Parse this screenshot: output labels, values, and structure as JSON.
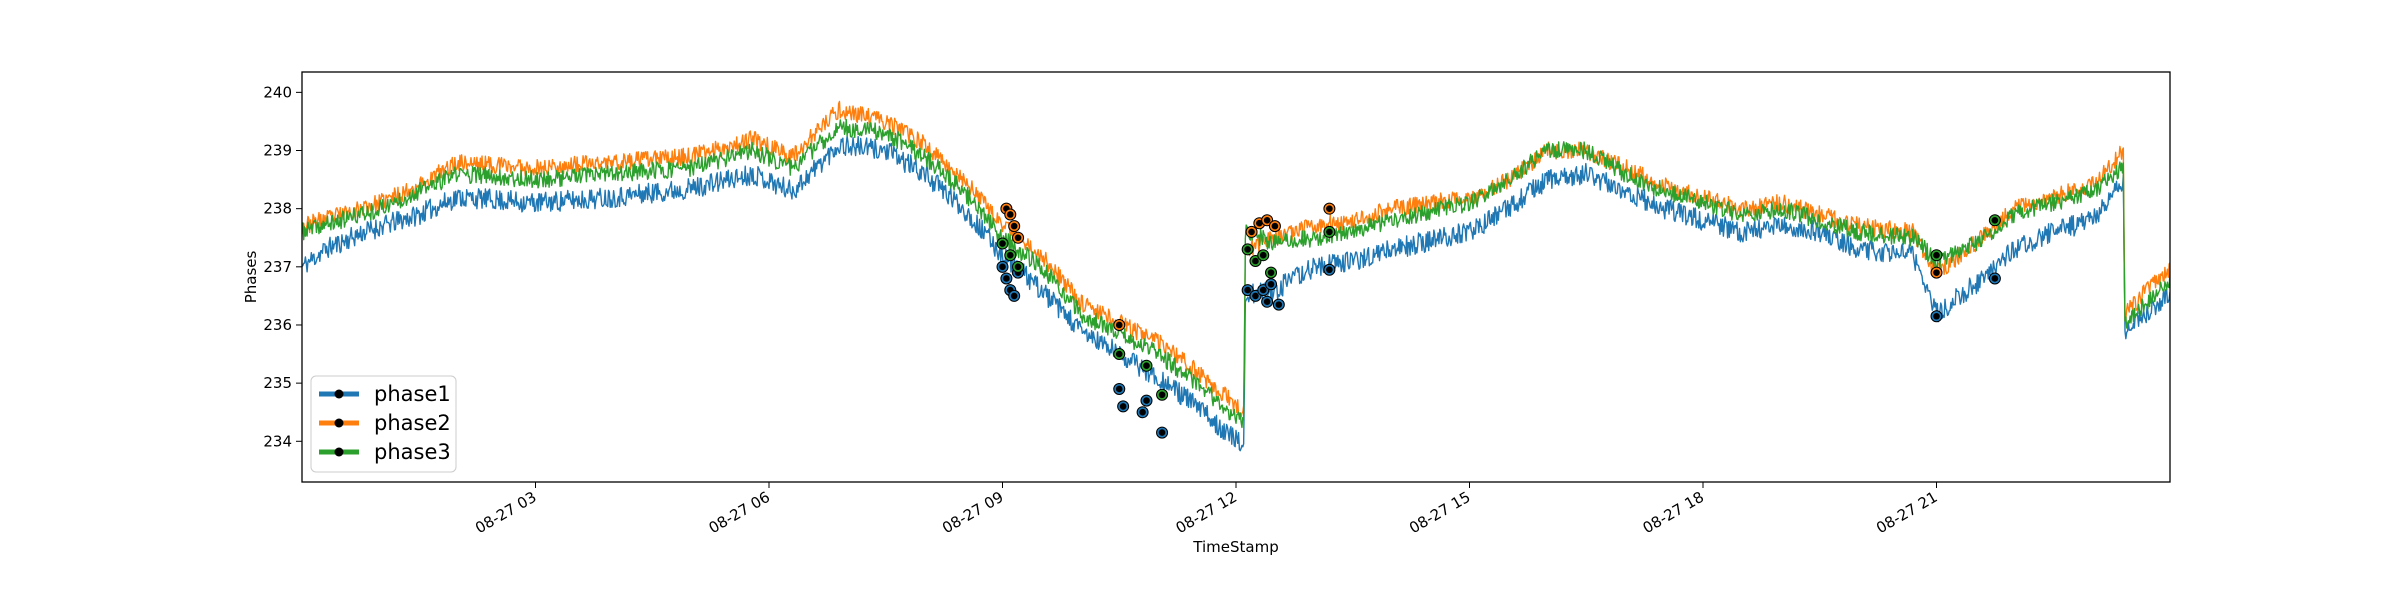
{
  "chart_data": {
    "type": "line",
    "title": "",
    "xlabel": "TimeStamp",
    "ylabel": "Phases",
    "x_range": [
      "08-27 00:00",
      "08-27 24:00"
    ],
    "ylim": [
      233.3,
      240.35
    ],
    "grid": false,
    "legend_position": "lower-left",
    "x_ticks": [
      {
        "t": 3,
        "label": "08-27 03"
      },
      {
        "t": 6,
        "label": "08-27 06"
      },
      {
        "t": 9,
        "label": "08-27 09"
      },
      {
        "t": 12,
        "label": "08-27 12"
      },
      {
        "t": 15,
        "label": "08-27 15"
      },
      {
        "t": 18,
        "label": "08-27 18"
      },
      {
        "t": 21,
        "label": "08-27 21"
      }
    ],
    "y_ticks": [
      {
        "v": 234,
        "label": "234"
      },
      {
        "v": 235,
        "label": "235"
      },
      {
        "v": 236,
        "label": "236"
      },
      {
        "v": 237,
        "label": "237"
      },
      {
        "v": 238,
        "label": "238"
      },
      {
        "v": 239,
        "label": "239"
      },
      {
        "v": 240,
        "label": "240"
      }
    ],
    "series": [
      {
        "name": "phase1",
        "color": "#1f77b4",
        "noise": 0.18,
        "seed": 11,
        "points": [
          [
            0.0,
            237.0
          ],
          [
            0.3,
            237.3
          ],
          [
            0.8,
            237.6
          ],
          [
            1.5,
            237.9
          ],
          [
            2.0,
            238.2
          ],
          [
            3.0,
            238.1
          ],
          [
            4.0,
            238.2
          ],
          [
            5.0,
            238.35
          ],
          [
            5.8,
            238.6
          ],
          [
            6.3,
            238.3
          ],
          [
            6.9,
            239.1
          ],
          [
            7.5,
            239.0
          ],
          [
            8.0,
            238.6
          ],
          [
            8.5,
            238.0
          ],
          [
            9.0,
            237.2
          ],
          [
            9.5,
            236.6
          ],
          [
            10.0,
            235.9
          ],
          [
            11.0,
            235.1
          ],
          [
            11.5,
            234.6
          ],
          [
            12.1,
            233.9
          ],
          [
            12.12,
            236.5
          ],
          [
            12.5,
            236.6
          ],
          [
            13.0,
            237.0
          ],
          [
            13.5,
            237.1
          ],
          [
            14.0,
            237.3
          ],
          [
            15.0,
            237.6
          ],
          [
            15.5,
            238.0
          ],
          [
            16.0,
            238.5
          ],
          [
            16.5,
            238.6
          ],
          [
            17.0,
            238.3
          ],
          [
            17.5,
            238.0
          ],
          [
            18.0,
            237.8
          ],
          [
            18.5,
            237.6
          ],
          [
            19.0,
            237.7
          ],
          [
            19.5,
            237.6
          ],
          [
            20.0,
            237.3
          ],
          [
            20.7,
            237.2
          ],
          [
            21.0,
            236.2
          ],
          [
            21.5,
            236.7
          ],
          [
            22.0,
            237.3
          ],
          [
            22.5,
            237.6
          ],
          [
            23.0,
            237.8
          ],
          [
            23.4,
            238.5
          ],
          [
            23.42,
            235.9
          ],
          [
            24.0,
            236.5
          ]
        ],
        "anomalies": [
          [
            9.0,
            237.0
          ],
          [
            9.05,
            236.8
          ],
          [
            9.1,
            236.6
          ],
          [
            9.15,
            236.5
          ],
          [
            9.2,
            236.9
          ],
          [
            10.5,
            234.9
          ],
          [
            10.55,
            234.6
          ],
          [
            10.8,
            234.5
          ],
          [
            10.85,
            234.7
          ],
          [
            11.05,
            234.15
          ],
          [
            12.15,
            236.6
          ],
          [
            12.25,
            236.5
          ],
          [
            12.35,
            236.6
          ],
          [
            12.4,
            236.4
          ],
          [
            12.45,
            236.7
          ],
          [
            12.55,
            236.35
          ],
          [
            13.2,
            236.95
          ],
          [
            21.0,
            236.15
          ],
          [
            21.75,
            236.8
          ]
        ]
      },
      {
        "name": "phase2",
        "color": "#ff7f0e",
        "noise": 0.15,
        "seed": 23,
        "points": [
          [
            0.0,
            237.7
          ],
          [
            0.5,
            237.9
          ],
          [
            1.0,
            238.1
          ],
          [
            1.5,
            238.4
          ],
          [
            2.0,
            238.8
          ],
          [
            3.0,
            238.7
          ],
          [
            4.0,
            238.8
          ],
          [
            5.0,
            238.9
          ],
          [
            5.8,
            239.2
          ],
          [
            6.3,
            238.9
          ],
          [
            6.9,
            239.7
          ],
          [
            7.5,
            239.5
          ],
          [
            8.0,
            239.1
          ],
          [
            8.5,
            238.5
          ],
          [
            9.0,
            237.7
          ],
          [
            9.5,
            237.2
          ],
          [
            10.0,
            236.4
          ],
          [
            11.0,
            235.7
          ],
          [
            11.5,
            235.2
          ],
          [
            12.1,
            234.5
          ],
          [
            12.12,
            237.3
          ],
          [
            12.5,
            237.5
          ],
          [
            13.0,
            237.7
          ],
          [
            13.5,
            237.8
          ],
          [
            14.0,
            238.0
          ],
          [
            15.0,
            238.2
          ],
          [
            15.5,
            238.5
          ],
          [
            16.0,
            239.0
          ],
          [
            16.5,
            239.0
          ],
          [
            17.0,
            238.7
          ],
          [
            17.5,
            238.4
          ],
          [
            18.0,
            238.2
          ],
          [
            18.5,
            238.0
          ],
          [
            19.0,
            238.1
          ],
          [
            19.5,
            237.9
          ],
          [
            20.0,
            237.7
          ],
          [
            20.7,
            237.6
          ],
          [
            21.0,
            236.9
          ],
          [
            21.5,
            237.4
          ],
          [
            22.0,
            238.0
          ],
          [
            22.5,
            238.2
          ],
          [
            23.0,
            238.4
          ],
          [
            23.4,
            239.0
          ],
          [
            23.42,
            236.2
          ],
          [
            24.0,
            237.0
          ]
        ],
        "anomalies": [
          [
            9.05,
            238.0
          ],
          [
            9.1,
            237.9
          ],
          [
            9.15,
            237.7
          ],
          [
            9.2,
            237.5
          ],
          [
            10.5,
            236.0
          ],
          [
            12.2,
            237.6
          ],
          [
            12.3,
            237.75
          ],
          [
            12.4,
            237.8
          ],
          [
            12.5,
            237.7
          ],
          [
            13.2,
            238.0
          ],
          [
            21.0,
            236.9
          ]
        ]
      },
      {
        "name": "phase3",
        "color": "#2ca02c",
        "noise": 0.15,
        "seed": 37,
        "points": [
          [
            0.0,
            237.6
          ],
          [
            0.5,
            237.8
          ],
          [
            1.0,
            238.0
          ],
          [
            1.5,
            238.3
          ],
          [
            2.0,
            238.6
          ],
          [
            3.0,
            238.5
          ],
          [
            4.0,
            238.6
          ],
          [
            5.0,
            238.7
          ],
          [
            5.8,
            239.0
          ],
          [
            6.3,
            238.7
          ],
          [
            6.9,
            239.4
          ],
          [
            7.5,
            239.3
          ],
          [
            8.0,
            238.9
          ],
          [
            8.5,
            238.3
          ],
          [
            9.0,
            237.5
          ],
          [
            9.5,
            237.0
          ],
          [
            10.0,
            236.2
          ],
          [
            11.0,
            235.5
          ],
          [
            11.5,
            235.0
          ],
          [
            12.1,
            234.3
          ],
          [
            12.12,
            237.6
          ],
          [
            12.5,
            237.4
          ],
          [
            13.0,
            237.5
          ],
          [
            13.5,
            237.6
          ],
          [
            14.0,
            237.8
          ],
          [
            15.0,
            238.1
          ],
          [
            15.5,
            238.5
          ],
          [
            16.0,
            239.0
          ],
          [
            16.5,
            239.0
          ],
          [
            17.0,
            238.6
          ],
          [
            17.5,
            238.3
          ],
          [
            18.0,
            238.1
          ],
          [
            18.5,
            237.9
          ],
          [
            19.0,
            238.0
          ],
          [
            19.5,
            237.8
          ],
          [
            20.0,
            237.6
          ],
          [
            20.7,
            237.5
          ],
          [
            21.0,
            237.1
          ],
          [
            21.5,
            237.4
          ],
          [
            22.0,
            237.9
          ],
          [
            22.5,
            238.1
          ],
          [
            23.0,
            238.3
          ],
          [
            23.4,
            238.7
          ],
          [
            23.42,
            236.0
          ],
          [
            24.0,
            236.8
          ]
        ],
        "anomalies": [
          [
            9.0,
            237.4
          ],
          [
            9.1,
            237.2
          ],
          [
            9.2,
            237.0
          ],
          [
            10.5,
            235.5
          ],
          [
            10.85,
            235.3
          ],
          [
            11.05,
            234.8
          ],
          [
            12.15,
            237.3
          ],
          [
            12.25,
            237.1
          ],
          [
            12.35,
            237.2
          ],
          [
            12.45,
            236.9
          ],
          [
            13.2,
            237.6
          ],
          [
            21.0,
            237.2
          ],
          [
            21.75,
            237.8
          ]
        ]
      }
    ]
  }
}
